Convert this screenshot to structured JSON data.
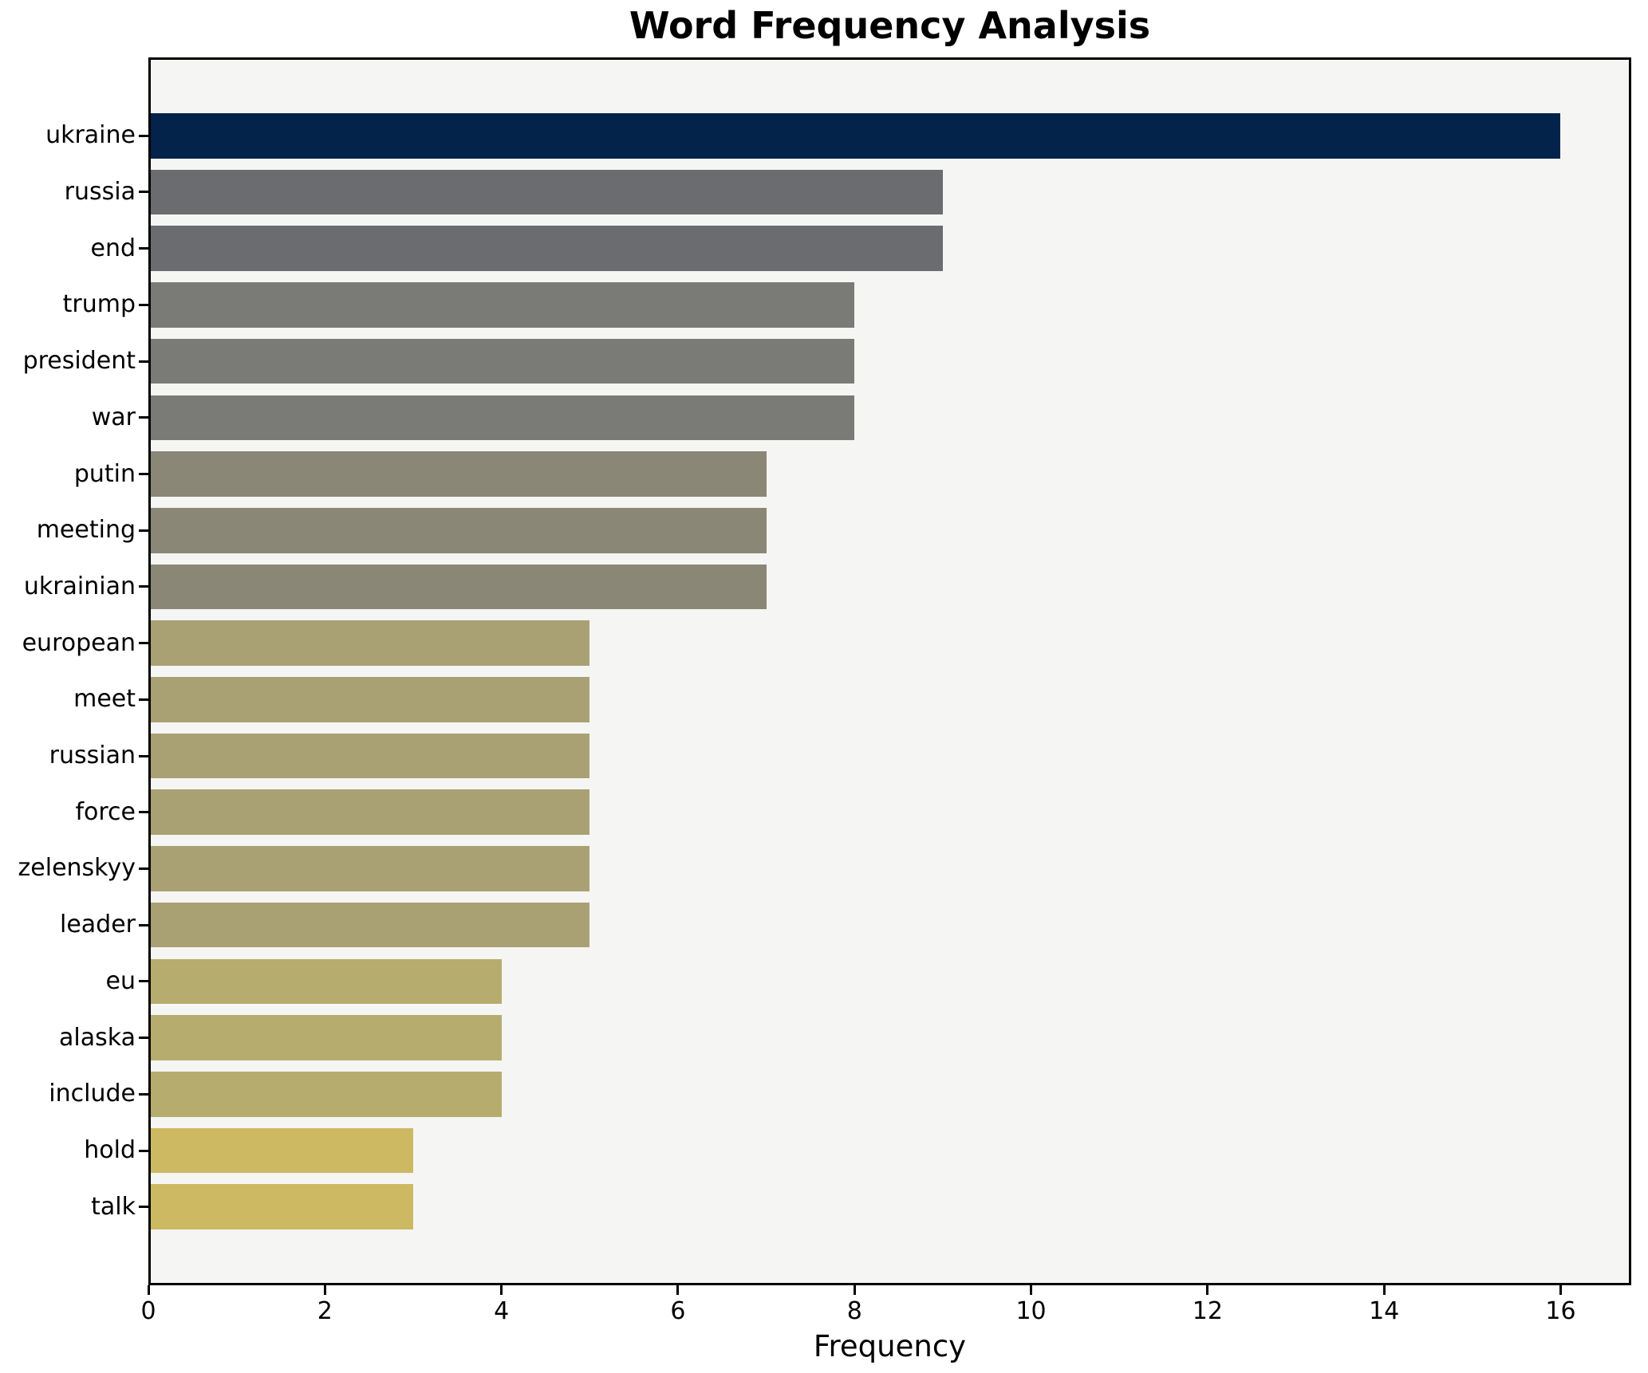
{
  "chart_data": {
    "type": "bar",
    "orientation": "horizontal",
    "title": "Word Frequency Analysis",
    "xlabel": "Frequency",
    "ylabel": "",
    "categories": [
      "ukraine",
      "russia",
      "end",
      "trump",
      "president",
      "war",
      "putin",
      "meeting",
      "ukrainian",
      "european",
      "meet",
      "russian",
      "force",
      "zelenskyy",
      "leader",
      "eu",
      "alaska",
      "include",
      "hold",
      "talk"
    ],
    "values": [
      16,
      9,
      9,
      8,
      8,
      8,
      7,
      7,
      7,
      5,
      5,
      5,
      5,
      5,
      5,
      4,
      4,
      4,
      3,
      3
    ],
    "bar_colors": [
      "#04234b",
      "#6b6c70",
      "#6b6c70",
      "#7a7a76",
      "#7a7a76",
      "#7a7a76",
      "#8a8777",
      "#8a8777",
      "#8a8777",
      "#a9a073",
      "#a9a073",
      "#a9a073",
      "#a9a073",
      "#a9a073",
      "#a9a073",
      "#b6ac6e",
      "#b6ac6e",
      "#b6ac6e",
      "#ccb962",
      "#ccb962"
    ],
    "xlim": [
      0,
      16.8
    ],
    "xticks": [
      0,
      2,
      4,
      6,
      8,
      10,
      12,
      14,
      16
    ],
    "grid": false,
    "legend": "none",
    "bar_height_fraction": 0.8,
    "colors": {
      "figure_background": "#ffffff",
      "plot_background": "#f5f5f3",
      "spine": "#000000",
      "text": "#000000"
    }
  }
}
